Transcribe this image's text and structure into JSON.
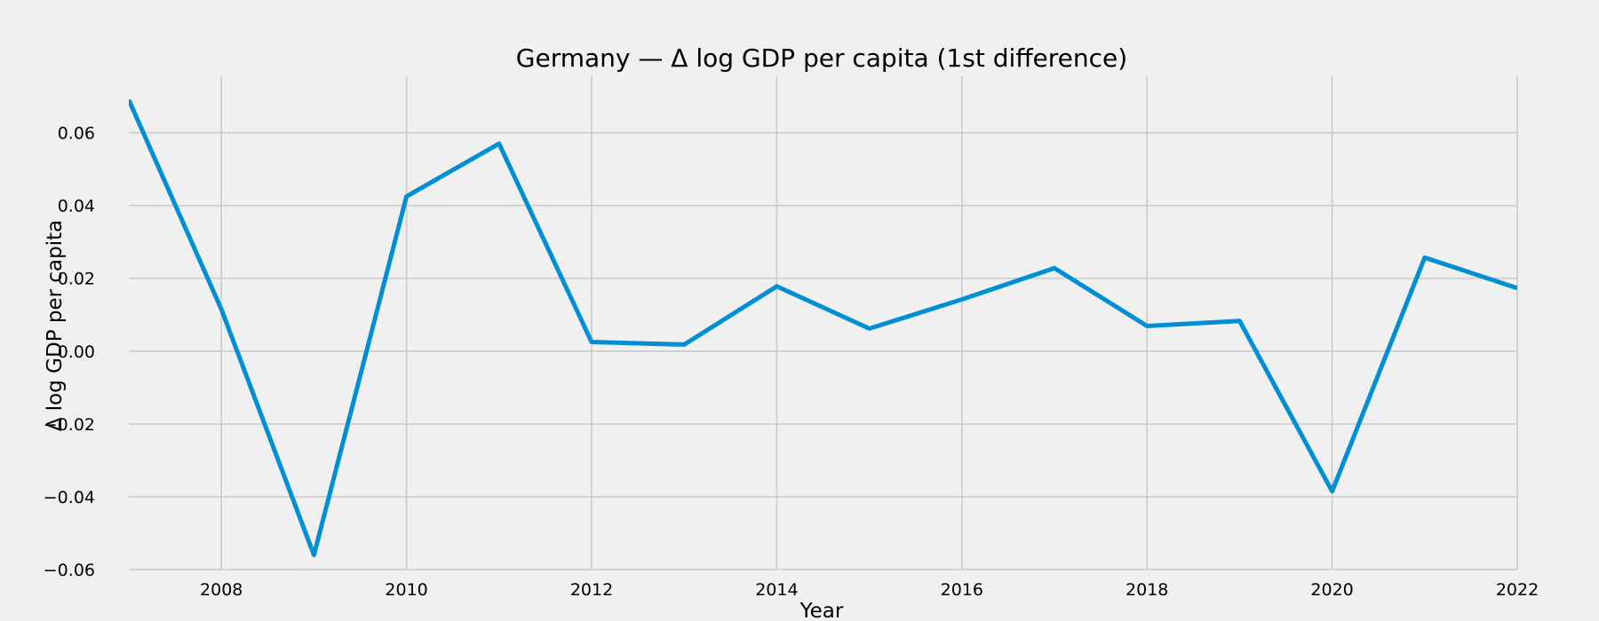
{
  "chart_data": {
    "type": "line",
    "title": "Germany — Δ log GDP per capita (1st difference)",
    "xlabel": "Year",
    "ylabel": "Δ log GDP per capita",
    "xlim": [
      2007,
      2022
    ],
    "ylim": [
      -0.06,
      0.0755
    ],
    "x_ticks": [
      2008,
      2010,
      2012,
      2014,
      2016,
      2018,
      2020,
      2022
    ],
    "y_ticks": [
      -0.06,
      -0.04,
      -0.02,
      0.0,
      0.02,
      0.04,
      0.06
    ],
    "y_tick_labels": [
      "−0.06",
      "−0.04",
      "−0.02",
      "0.00",
      "0.02",
      "0.04",
      "0.06"
    ],
    "grid": true,
    "series": [
      {
        "color": "#008fd5",
        "x": [
          2007,
          2008,
          2009,
          2010,
          2011,
          2012,
          2013,
          2014,
          2015,
          2016,
          2017,
          2018,
          2019,
          2020,
          2021,
          2022
        ],
        "y": [
          0.069,
          0.0115,
          -0.056,
          0.0425,
          0.057,
          0.0025,
          0.0018,
          0.0178,
          0.0062,
          0.0142,
          0.0228,
          0.0069,
          0.0083,
          -0.0385,
          0.0257,
          0.0173
        ]
      }
    ]
  }
}
